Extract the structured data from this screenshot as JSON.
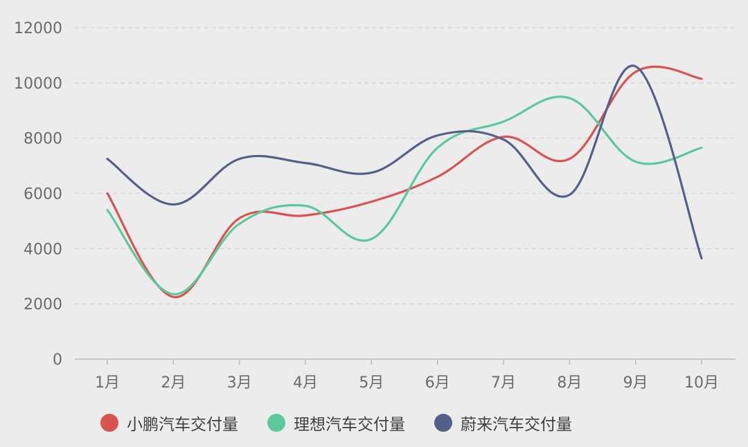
{
  "chart_data": {
    "type": "line",
    "smooth": true,
    "categories": [
      "1月",
      "2月",
      "3月",
      "4月",
      "5月",
      "6月",
      "7月",
      "8月",
      "9月",
      "10月"
    ],
    "ylim": [
      0,
      12000
    ],
    "yticks": [
      0,
      2000,
      4000,
      6000,
      8000,
      10000,
      12000
    ],
    "grid": true,
    "legend_position": "bottom",
    "series": [
      {
        "name": "小鹏汽车交付量",
        "color": "#d9534f",
        "values": [
          6000,
          2250,
          5100,
          5200,
          5700,
          6600,
          8050,
          7250,
          10400,
          10150
        ]
      },
      {
        "name": "理想汽车交付量",
        "color": "#5bc99c",
        "values": [
          5400,
          2350,
          4900,
          5550,
          4350,
          7650,
          8600,
          9450,
          7150,
          7650
        ]
      },
      {
        "name": "蔚来汽车交付量",
        "color": "#55608a",
        "values": [
          7250,
          5600,
          7250,
          7100,
          6750,
          8100,
          7950,
          5950,
          10600,
          3650
        ]
      }
    ]
  }
}
